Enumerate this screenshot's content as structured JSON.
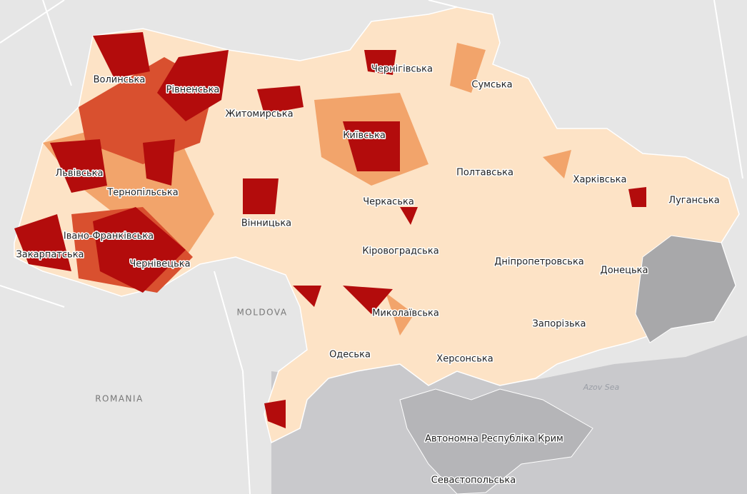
{
  "regions": [
    {
      "label": "Волинська"
    },
    {
      "label": "Рівненська"
    },
    {
      "label": "Житомирська"
    },
    {
      "label": "Чернігівська"
    },
    {
      "label": "Сумська"
    },
    {
      "label": "Київська"
    },
    {
      "label": "Львівська"
    },
    {
      "label": "Тернопільська"
    },
    {
      "label": "Харківська"
    },
    {
      "label": "Луганська"
    },
    {
      "label": "Полтавська"
    },
    {
      "label": "Черкаська"
    },
    {
      "label": "Вінницька"
    },
    {
      "label": "Івано-Франківська"
    },
    {
      "label": "Закарпатська"
    },
    {
      "label": "Кіровоградська"
    },
    {
      "label": "Чернівецька"
    },
    {
      "label": "Дніпропетровська"
    },
    {
      "label": "Донецька"
    },
    {
      "label": "Миколаївська"
    },
    {
      "label": "Запорізька"
    },
    {
      "label": "Одеська"
    },
    {
      "label": "Херсонська"
    },
    {
      "label": "Автономна Республіка Крим"
    },
    {
      "label": "Севастопольська"
    }
  ],
  "countries": [
    {
      "label": "MOLDOVA"
    },
    {
      "label": "ROMANIA"
    }
  ],
  "seas": [
    {
      "label": "Azov Sea"
    }
  ]
}
